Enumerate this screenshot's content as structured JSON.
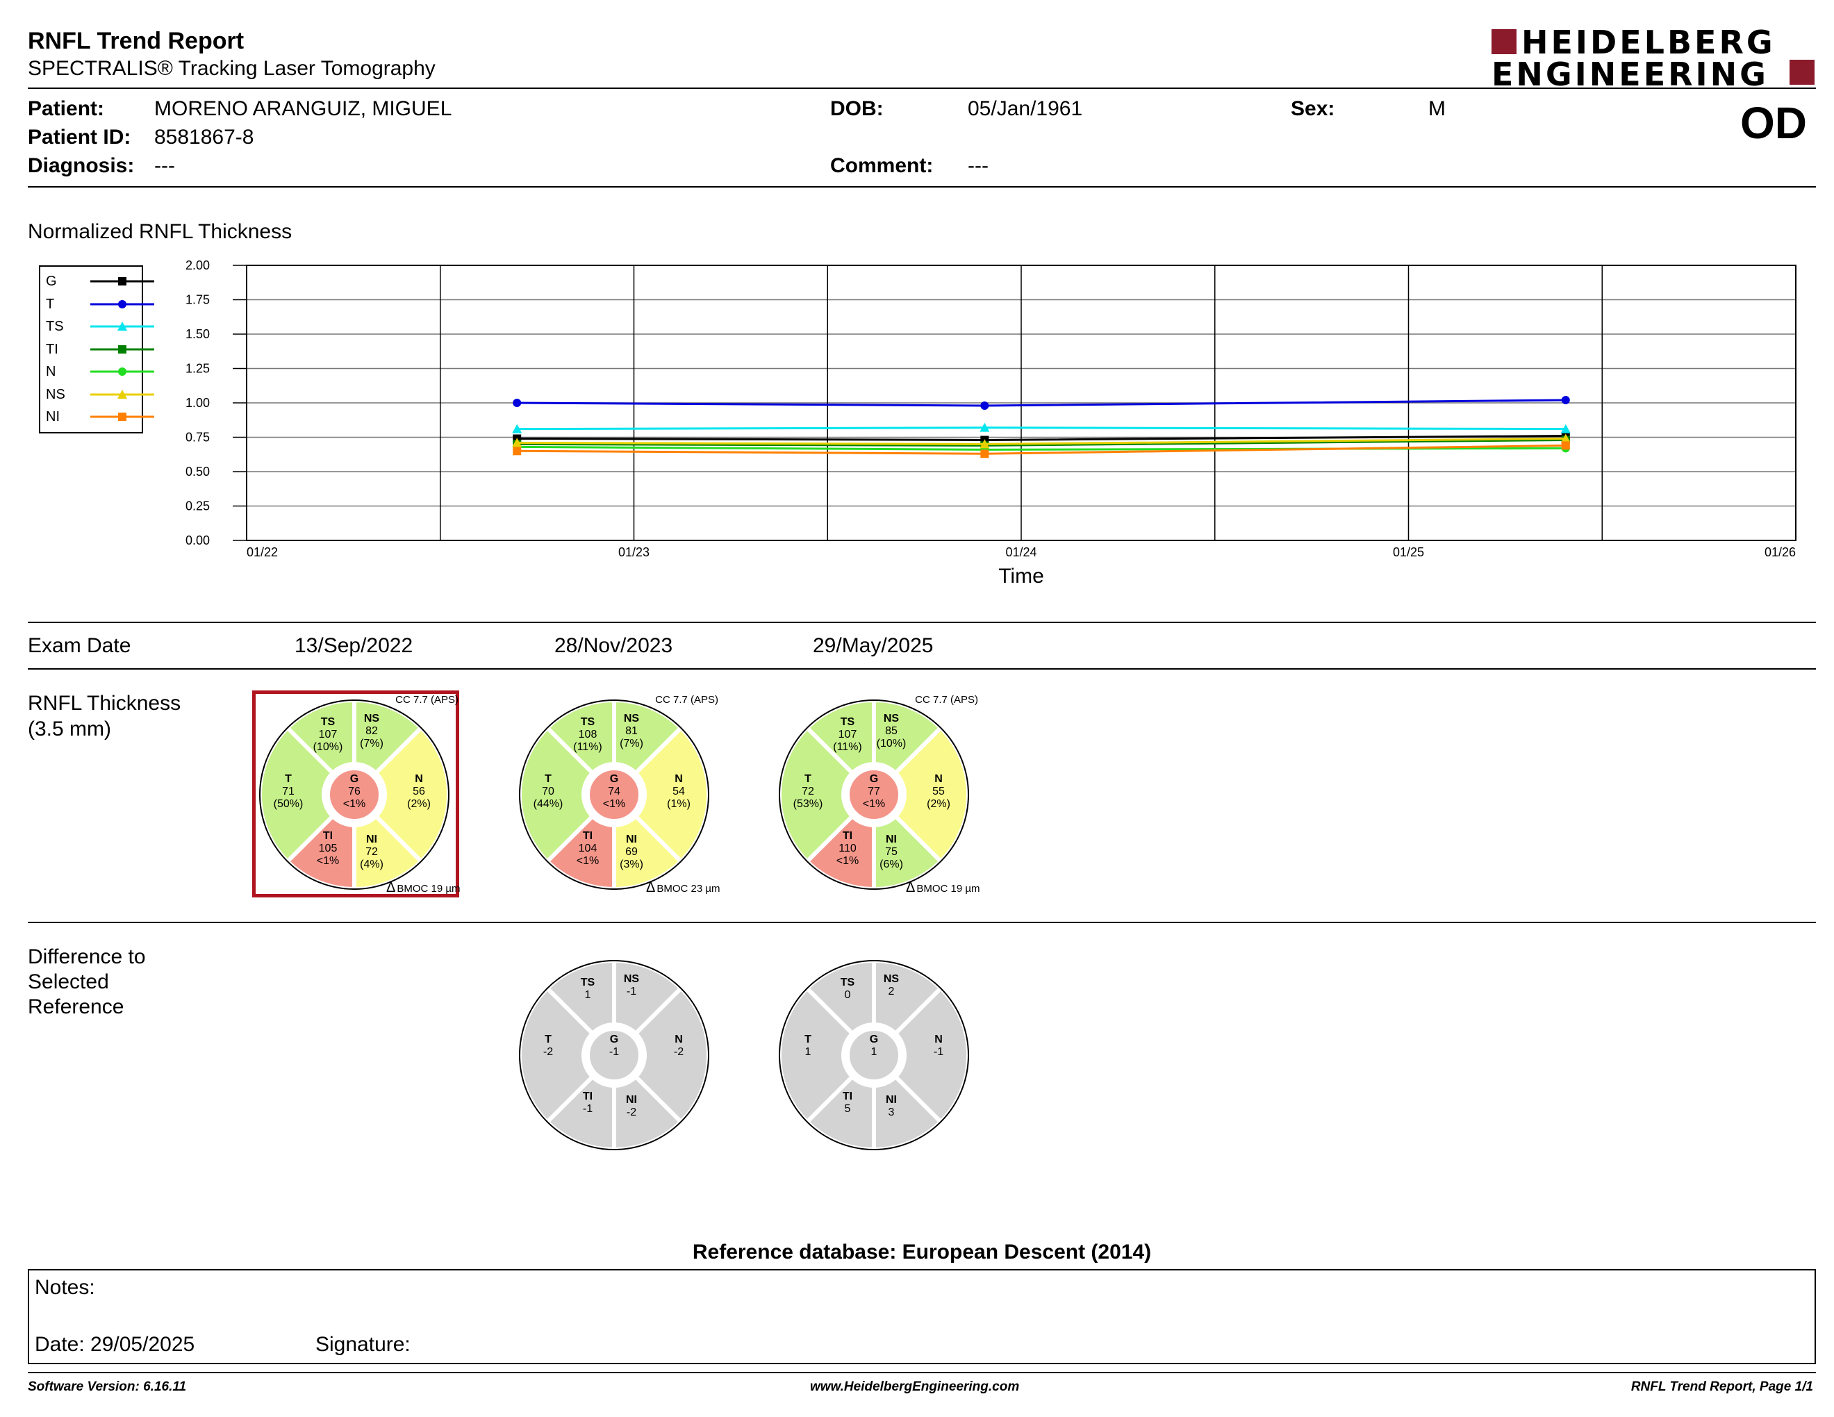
{
  "header": {
    "title": "RNFL Trend Report",
    "subtitle": "SPECTRALIS® Tracking Laser Tomography",
    "logo_line1": "HEIDELBERG",
    "logo_line2": "ENGINEERING",
    "eye": "OD"
  },
  "patient": {
    "patient_label": "Patient:",
    "patient_value": "MORENO ARANGUIZ, MIGUEL",
    "id_label": "Patient ID:",
    "id_value": "8581867-8",
    "diagnosis_label": "Diagnosis:",
    "diagnosis_value": "---",
    "dob_label": "DOB:",
    "dob_value": "05/Jan/1961",
    "comment_label": "Comment:",
    "comment_value": "---",
    "sex_label": "Sex:",
    "sex_value": "M"
  },
  "chart_data": {
    "type": "line",
    "title": "Normalized RNFL Thickness",
    "xlabel": "Time",
    "ylabel": "",
    "ylim": [
      0,
      2
    ],
    "yticks": [
      "0.00",
      "0.25",
      "0.50",
      "0.75",
      "1.00",
      "1.25",
      "1.50",
      "1.75",
      "2.00"
    ],
    "xticks": [
      "01/22",
      "01/23",
      "01/24",
      "01/25",
      "01/26"
    ],
    "xlim": [
      "2022-01-01",
      "2026-01-01"
    ],
    "x": [
      "2022-09-13",
      "2023-11-28",
      "2025-05-29"
    ],
    "grid": true,
    "legend_position": "left",
    "series": [
      {
        "name": "G",
        "color": "#000000",
        "marker": "square",
        "values": [
          0.74,
          0.73,
          0.76
        ]
      },
      {
        "name": "T",
        "color": "#0000dd",
        "marker": "circle",
        "values": [
          1.0,
          0.98,
          1.02
        ]
      },
      {
        "name": "TS",
        "color": "#00e5ee",
        "marker": "triangle",
        "values": [
          0.81,
          0.82,
          0.81
        ]
      },
      {
        "name": "TI",
        "color": "#008000",
        "marker": "square",
        "values": [
          0.7,
          0.69,
          0.73
        ]
      },
      {
        "name": "N",
        "color": "#22dd22",
        "marker": "circle",
        "values": [
          0.68,
          0.66,
          0.67
        ]
      },
      {
        "name": "NS",
        "color": "#e8d000",
        "marker": "triangle",
        "values": [
          0.71,
          0.7,
          0.74
        ]
      },
      {
        "name": "NI",
        "color": "#ff8000",
        "marker": "square",
        "values": [
          0.65,
          0.63,
          0.69
        ]
      }
    ]
  },
  "exams": {
    "exam_date_label": "Exam Date",
    "dates": [
      "13/Sep/2022",
      "28/Nov/2023",
      "29/May/2025"
    ],
    "thickness_label_line1": "RNFL Thickness",
    "thickness_label_line2": "(3.5 mm)",
    "difference_label_line1": "Difference to",
    "difference_label_line2": "Selected",
    "difference_label_line3": "Reference",
    "cc_texts": [
      "CC 7.7 (APS)",
      "CC 7.7 (APS)",
      "CC 7.7 (APS)"
    ],
    "bmo_prefix": "Δ",
    "bmo_texts": [
      "BMOC 19 µm",
      "BMOC 23 µm",
      "BMOC 19 µm"
    ],
    "colors": {
      "green": "#c6f08a",
      "yellow": "#fafa8c",
      "red": "#f4958a",
      "grey": "#d3d3d3",
      "selected": "#b0141e"
    },
    "thickness": [
      {
        "G": [
          "G",
          "76",
          "<1%"
        ],
        "T": [
          "T",
          "71",
          "(50%)"
        ],
        "TS": [
          "TS",
          "107",
          "(10%)"
        ],
        "NS": [
          "NS",
          "82",
          "(7%)"
        ],
        "N": [
          "N",
          "56",
          "(2%)"
        ],
        "NI": [
          "NI",
          "72",
          "(4%)"
        ],
        "TI": [
          "TI",
          "105",
          "<1%"
        ]
      },
      {
        "G": [
          "G",
          "74",
          "<1%"
        ],
        "T": [
          "T",
          "70",
          "(44%)"
        ],
        "TS": [
          "TS",
          "108",
          "(11%)"
        ],
        "NS": [
          "NS",
          "81",
          "(7%)"
        ],
        "N": [
          "N",
          "54",
          "(1%)"
        ],
        "NI": [
          "NI",
          "69",
          "(3%)"
        ],
        "TI": [
          "TI",
          "104",
          "<1%"
        ]
      },
      {
        "G": [
          "G",
          "77",
          "<1%"
        ],
        "T": [
          "T",
          "72",
          "(53%)"
        ],
        "TS": [
          "TS",
          "107",
          "(11%)"
        ],
        "NS": [
          "NS",
          "85",
          "(10%)"
        ],
        "N": [
          "N",
          "55",
          "(2%)"
        ],
        "NI": [
          "NI",
          "75",
          "(6%)"
        ],
        "TI": [
          "TI",
          "110",
          "<1%"
        ]
      }
    ],
    "thickness_colors": [
      {
        "G": "red",
        "T": "green",
        "TS": "green",
        "NS": "green",
        "N": "yellow",
        "NI": "yellow",
        "TI": "red"
      },
      {
        "G": "red",
        "T": "green",
        "TS": "green",
        "NS": "green",
        "N": "yellow",
        "NI": "yellow",
        "TI": "red"
      },
      {
        "G": "red",
        "T": "green",
        "TS": "green",
        "NS": "green",
        "N": "yellow",
        "NI": "green",
        "TI": "red"
      }
    ],
    "difference": [
      {
        "G": [
          "G",
          "-1"
        ],
        "T": [
          "T",
          "-2"
        ],
        "TS": [
          "TS",
          "1"
        ],
        "NS": [
          "NS",
          "-1"
        ],
        "N": [
          "N",
          "-2"
        ],
        "NI": [
          "NI",
          "-2"
        ],
        "TI": [
          "TI",
          "-1"
        ]
      },
      {
        "G": [
          "G",
          "1"
        ],
        "T": [
          "T",
          "1"
        ],
        "TS": [
          "TS",
          "0"
        ],
        "NS": [
          "NS",
          "2"
        ],
        "N": [
          "N",
          "-1"
        ],
        "NI": [
          "NI",
          "3"
        ],
        "TI": [
          "TI",
          "5"
        ]
      }
    ]
  },
  "reference": {
    "database": "Reference database: European Descent (2014)",
    "notes_label": "Notes:",
    "date_label": "Date: 29/05/2025",
    "signature_label": "Signature:"
  },
  "footer": {
    "software": "Software Version: 6.16.11",
    "website": "www.HeidelbergEngineering.com",
    "page": "RNFL Trend Report, Page 1/1"
  }
}
